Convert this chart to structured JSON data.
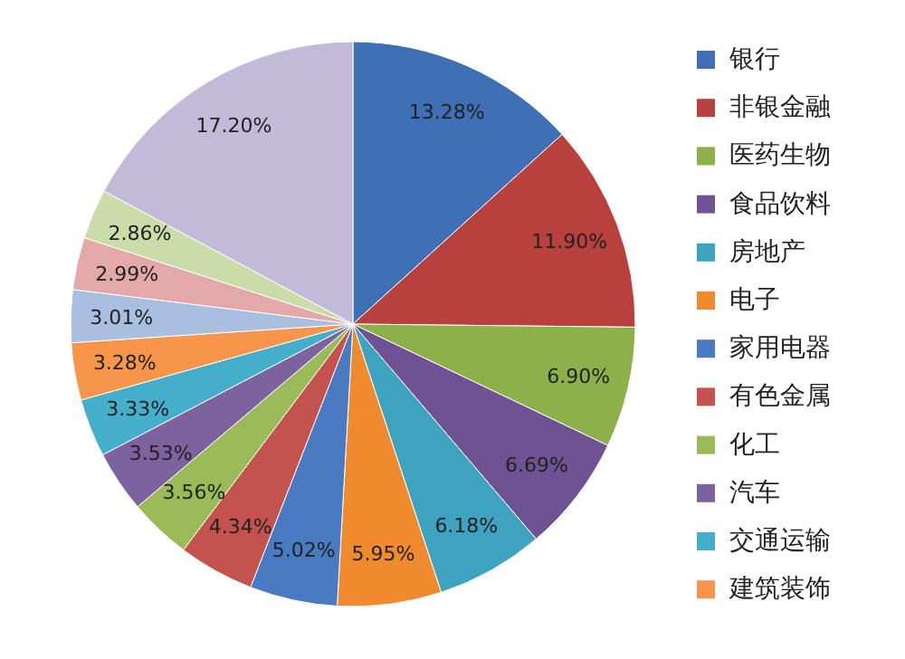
{
  "chart_data": {
    "type": "pie",
    "categories": [
      "银行",
      "非银金融",
      "医药生物",
      "食品饮料",
      "房地产",
      "电子",
      "家用电器",
      "有色金属",
      "化工",
      "汽车",
      "交通运输",
      "建筑装饰",
      null,
      null,
      null,
      null
    ],
    "values": [
      13.28,
      11.9,
      6.9,
      6.69,
      6.18,
      5.95,
      5.02,
      4.34,
      3.56,
      3.53,
      3.33,
      3.28,
      3.01,
      2.99,
      2.86,
      17.2
    ],
    "value_labels": [
      "13.28%",
      "11.90%",
      "6.90%",
      "6.69%",
      "6.18%",
      "5.95%",
      "5.02%",
      "4.34%",
      "3.56%",
      "3.53%",
      "3.33%",
      "3.28%",
      "3.01%",
      "2.99%",
      "2.86%",
      "17.20%"
    ],
    "colors": [
      "#3f6fb5",
      "#b8413e",
      "#8cb04a",
      "#6e5294",
      "#3ea3be",
      "#f08a2e",
      "#4a7bc2",
      "#c45350",
      "#9bbb59",
      "#7d62a0",
      "#45aecb",
      "#f7954a",
      "#a8bfdf",
      "#e2a9a8",
      "#cadca8",
      "#c3b9d9"
    ],
    "legend": "right"
  }
}
